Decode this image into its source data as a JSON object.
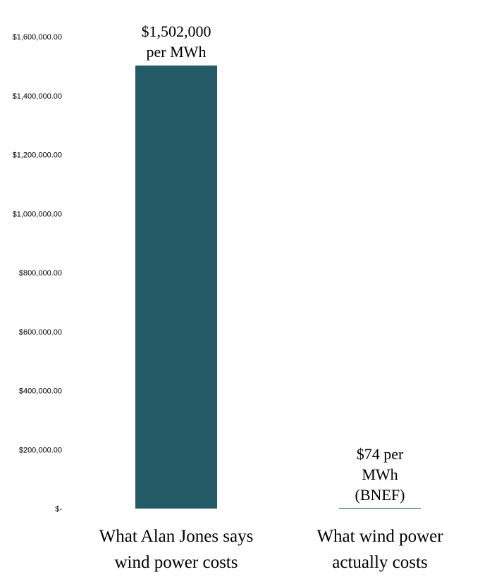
{
  "chart_data": {
    "type": "bar",
    "categories": [
      [
        "What Alan Jones says",
        "wind power costs"
      ],
      [
        "What wind power",
        "actually costs"
      ]
    ],
    "values": [
      1502000,
      74
    ],
    "data_labels": [
      [
        "$1,502,000",
        "per MWh"
      ],
      [
        "$74 per",
        "MWh",
        "(BNEF)"
      ]
    ],
    "ylim": [
      0,
      1600000
    ],
    "y_ticks": [
      {
        "value": 1600000,
        "label": "$1,600,000.00"
      },
      {
        "value": 1400000,
        "label": "$1,400,000.00"
      },
      {
        "value": 1200000,
        "label": "$1,200,000.00"
      },
      {
        "value": 1000000,
        "label": "$1,000,000.00"
      },
      {
        "value": 800000,
        "label": "$800,000.00"
      },
      {
        "value": 600000,
        "label": "$600,000.00"
      },
      {
        "value": 400000,
        "label": "$400,000.00"
      },
      {
        "value": 200000,
        "label": "$200,000.00"
      },
      {
        "value": 0,
        "label": "$-"
      }
    ],
    "grid": false,
    "bar_color": "#235a66"
  }
}
